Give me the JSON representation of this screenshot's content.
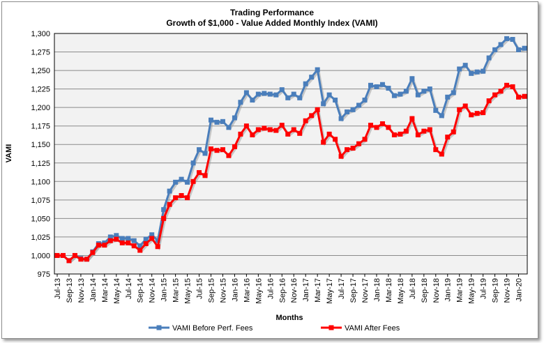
{
  "chart_data": {
    "type": "line",
    "title": "Trading Performance",
    "subtitle": "Growth of $1,000 - Value Added Monthly Index (VAMI)",
    "xlabel": "Months",
    "ylabel": "VAMI",
    "ylim": [
      975,
      1300
    ],
    "ytick_step": 25,
    "grid": true,
    "legend_position": "bottom",
    "x_tick_labels": [
      "Jul-13",
      "Sep-13",
      "Nov-13",
      "Jan-14",
      "Mar-14",
      "May-14",
      "Jul-14",
      "Sep-14",
      "Nov-14",
      "Jan-15",
      "Mar-15",
      "May-15",
      "Jul-15",
      "Sep-15",
      "Nov-15",
      "Jan-16",
      "Mar-16",
      "May-16",
      "Jul-16",
      "Sep-16",
      "Nov-16",
      "Jan-17",
      "Mar-17",
      "May-17",
      "Jul-17",
      "Sep-17",
      "Nov-17",
      "Jan-18",
      "Mar-18",
      "May-18",
      "Jul-18",
      "Sep-18",
      "Nov-18",
      "Jan-19",
      "Mar-19",
      "May-19",
      "Jul-19",
      "Sep-19",
      "Nov-19",
      "Jan-20"
    ],
    "x_start": "Jul-13",
    "x_end": "Feb-20",
    "series": [
      {
        "name": "VAMI Before Perf. Fees",
        "color": "#4a7ebb",
        "values": [
          1000,
          1000,
          993,
          1000,
          996,
          995,
          1005,
          1016,
          1017,
          1025,
          1027,
          1023,
          1023,
          1020,
          1013,
          1022,
          1028,
          1020,
          1062,
          1087,
          1099,
          1103,
          1099,
          1125,
          1143,
          1138,
          1183,
          1180,
          1181,
          1173,
          1186,
          1207,
          1220,
          1210,
          1218,
          1219,
          1218,
          1217,
          1224,
          1213,
          1218,
          1213,
          1232,
          1241,
          1251,
          1205,
          1217,
          1210,
          1185,
          1194,
          1197,
          1203,
          1210,
          1230,
          1228,
          1231,
          1226,
          1216,
          1218,
          1222,
          1239,
          1217,
          1222,
          1225,
          1196,
          1189,
          1214,
          1220,
          1252,
          1257,
          1246,
          1248,
          1249,
          1267,
          1278,
          1285,
          1293,
          1292,
          1278,
          1280
        ]
      },
      {
        "name": "VAMI After Fees",
        "color": "#ff0000",
        "values": [
          1000,
          1000,
          993,
          1000,
          995,
          995,
          1004,
          1014,
          1014,
          1020,
          1022,
          1017,
          1017,
          1013,
          1007,
          1016,
          1023,
          1012,
          1050,
          1069,
          1078,
          1081,
          1078,
          1100,
          1112,
          1108,
          1144,
          1142,
          1143,
          1135,
          1147,
          1164,
          1175,
          1163,
          1170,
          1172,
          1170,
          1169,
          1176,
          1164,
          1170,
          1165,
          1182,
          1189,
          1197,
          1153,
          1164,
          1157,
          1134,
          1143,
          1145,
          1151,
          1157,
          1176,
          1173,
          1178,
          1173,
          1163,
          1164,
          1168,
          1185,
          1163,
          1168,
          1170,
          1143,
          1137,
          1160,
          1167,
          1197,
          1202,
          1190,
          1192,
          1193,
          1209,
          1217,
          1222,
          1230,
          1228,
          1214,
          1215
        ]
      }
    ]
  }
}
